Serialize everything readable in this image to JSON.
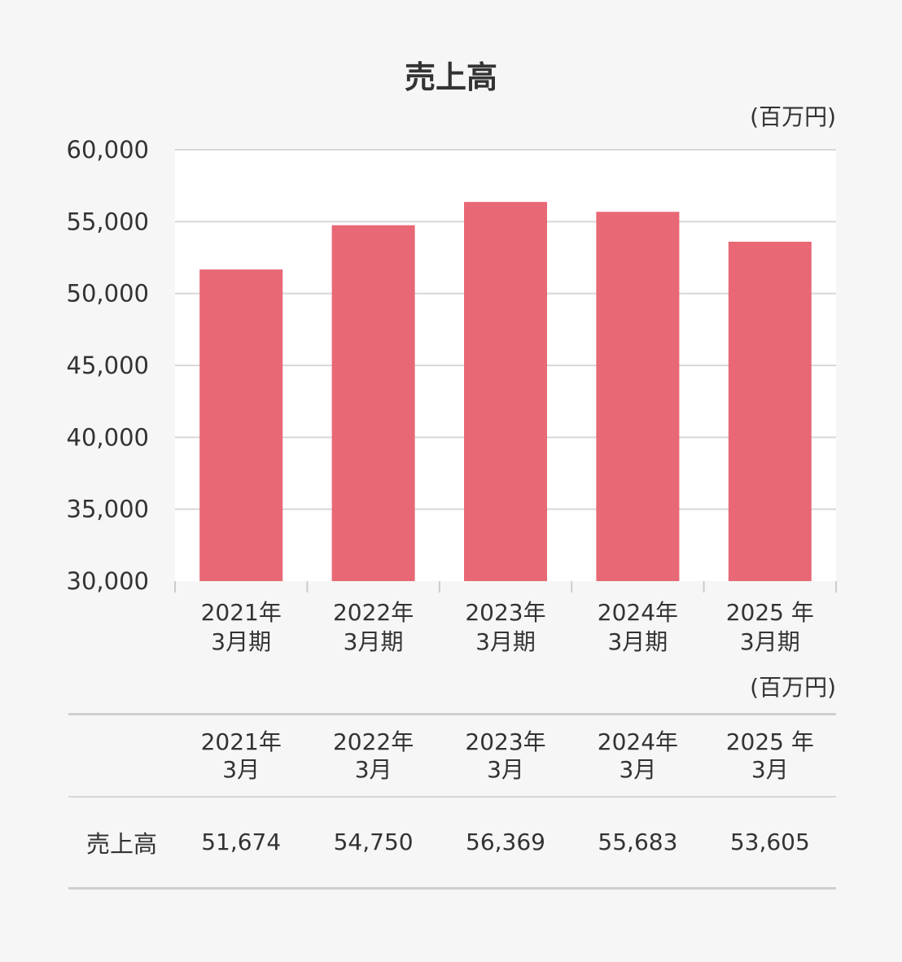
{
  "chart_data": {
    "type": "bar",
    "title": "売上高",
    "unit": "(百万円)",
    "categories_line1": [
      "2021年",
      "2022年",
      "2023年",
      "2024年",
      "2025 年"
    ],
    "categories_line2": [
      "3月期",
      "3月期",
      "3月期",
      "3月期",
      "3月期"
    ],
    "values": [
      51674,
      54750,
      56369,
      55683,
      53605
    ],
    "ylim": [
      30000,
      60000
    ],
    "yticks": [
      "30,000",
      "35,000",
      "40,000",
      "45,000",
      "50,000",
      "55,000",
      "60,000"
    ],
    "bar_color": "#e96875",
    "grid": true
  },
  "table": {
    "unit": "(百万円)",
    "headers_line1": [
      "2021年",
      "2022年",
      "2023年",
      "2024年",
      "2025 年"
    ],
    "headers_line2": [
      "3月",
      "3月",
      "3月",
      "3月",
      "3月"
    ],
    "row_label": "売上高",
    "row_values": [
      "51,674",
      "54,750",
      "56,369",
      "55,683",
      "53,605"
    ]
  }
}
